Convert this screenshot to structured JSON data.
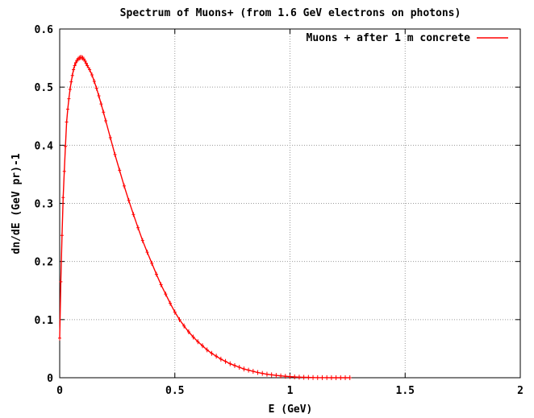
{
  "chart_data": {
    "type": "line",
    "title": "Spectrum of Muons+ (from 1.6 GeV electrons on photons)",
    "xlabel": "E (GeV)",
    "ylabel": "dn/dE (GeV pr)-1",
    "xlim": [
      0,
      2
    ],
    "ylim": [
      0,
      0.6
    ],
    "x_ticks": [
      "0",
      "0.5",
      "1",
      "1.5",
      "2"
    ],
    "y_ticks": [
      "0",
      "0.1",
      "0.2",
      "0.3",
      "0.4",
      "0.5",
      "0.6"
    ],
    "grid": true,
    "legend_position": "top-right",
    "series": [
      {
        "name": "Muons + after 1 m concrete",
        "color": "#ff0000",
        "x": [
          0.0,
          0.005,
          0.01,
          0.015,
          0.02,
          0.025,
          0.03,
          0.035,
          0.04,
          0.045,
          0.05,
          0.055,
          0.06,
          0.065,
          0.07,
          0.075,
          0.08,
          0.085,
          0.09,
          0.095,
          0.1,
          0.105,
          0.11,
          0.115,
          0.12,
          0.13,
          0.14,
          0.15,
          0.16,
          0.17,
          0.18,
          0.19,
          0.2,
          0.22,
          0.24,
          0.26,
          0.28,
          0.3,
          0.32,
          0.34,
          0.36,
          0.38,
          0.4,
          0.42,
          0.44,
          0.46,
          0.48,
          0.5,
          0.52,
          0.54,
          0.56,
          0.58,
          0.6,
          0.62,
          0.64,
          0.66,
          0.68,
          0.7,
          0.72,
          0.74,
          0.76,
          0.78,
          0.8,
          0.82,
          0.84,
          0.86,
          0.88,
          0.9,
          0.92,
          0.94,
          0.96,
          0.98,
          1.0,
          1.02,
          1.04,
          1.06,
          1.08,
          1.1,
          1.12,
          1.14,
          1.16,
          1.18,
          1.2,
          1.22,
          1.24,
          1.26
        ],
        "y": [
          0.068,
          0.165,
          0.245,
          0.31,
          0.355,
          0.398,
          0.44,
          0.462,
          0.48,
          0.496,
          0.509,
          0.52,
          0.53,
          0.537,
          0.542,
          0.546,
          0.548,
          0.55,
          0.551,
          0.551,
          0.55,
          0.548,
          0.545,
          0.541,
          0.537,
          0.53,
          0.521,
          0.51,
          0.498,
          0.485,
          0.471,
          0.457,
          0.442,
          0.413,
          0.384,
          0.357,
          0.33,
          0.305,
          0.281,
          0.258,
          0.236,
          0.216,
          0.197,
          0.178,
          0.16,
          0.144,
          0.128,
          0.113,
          0.1,
          0.089,
          0.079,
          0.07,
          0.062,
          0.055,
          0.048,
          0.042,
          0.037,
          0.032,
          0.028,
          0.024,
          0.021,
          0.018,
          0.015,
          0.013,
          0.011,
          0.009,
          0.0075,
          0.006,
          0.005,
          0.004,
          0.0032,
          0.0025,
          0.0019,
          0.0014,
          0.001,
          0.0007,
          0.0005,
          0.0003,
          0.0002,
          0.0001,
          0.0001,
          0.0,
          0.0,
          0.0,
          0.0,
          0.0
        ]
      }
    ]
  }
}
